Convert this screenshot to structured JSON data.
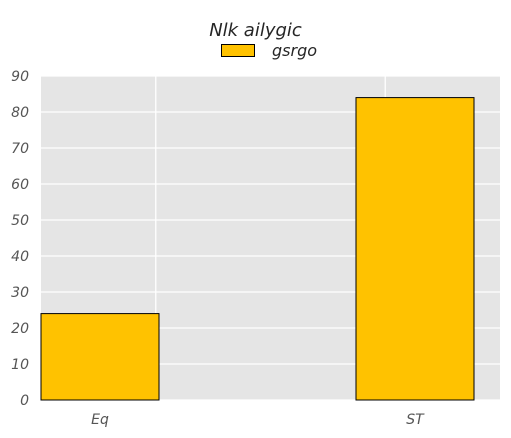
{
  "chart_data": {
    "type": "bar",
    "title": "Nlk ailygic",
    "xlabel": "",
    "ylabel": "",
    "categories": [
      "Eq",
      "ST"
    ],
    "series": [
      {
        "name": "gsrgo",
        "values": [
          24,
          84
        ]
      }
    ],
    "ylim": [
      0,
      90
    ],
    "yticks": [
      "0",
      "10",
      "20",
      "30",
      "40",
      "50",
      "60",
      "70",
      "80",
      "90"
    ],
    "grid": true,
    "legend_position": "top-center",
    "colors": {
      "bar": "#ffc200",
      "bar_edge": "#000000",
      "plot_bg": "#e5e5e5",
      "grid": "#ffffff"
    }
  }
}
